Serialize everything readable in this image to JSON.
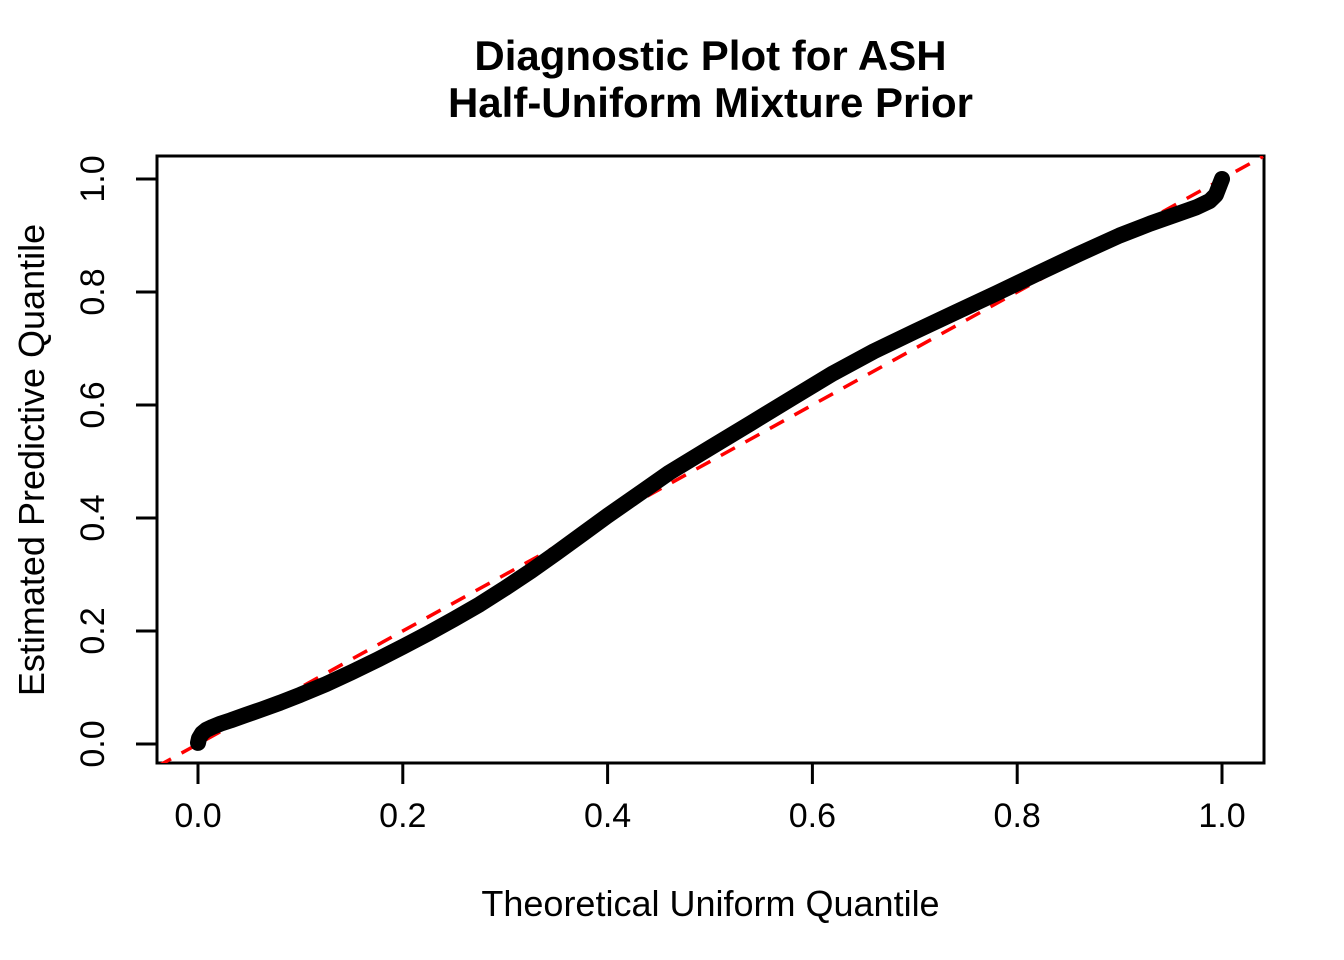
{
  "figure": {
    "background_color": "#FFFFFF",
    "axis_color": "#000000",
    "text_color": "#000000"
  },
  "chart_data": {
    "type": "line",
    "subtype": "qq-plot",
    "title_line1": "Diagnostic Plot for ASH",
    "title_line2": "Half-Uniform Mixture Prior",
    "xlabel": "Theoretical Uniform Quantile",
    "ylabel": "Estimated Predictive Quantile",
    "xlim": [
      -0.04,
      1.04
    ],
    "ylim": [
      -0.04,
      1.04
    ],
    "grid": false,
    "legend": "none",
    "xticks": [
      0.0,
      0.2,
      0.4,
      0.6,
      0.8,
      1.0
    ],
    "yticks": [
      0.0,
      0.2,
      0.4,
      0.6,
      0.8,
      1.0
    ],
    "xtick_labels": [
      "0.0",
      "0.2",
      "0.4",
      "0.6",
      "0.8",
      "1.0"
    ],
    "ytick_labels": [
      "0.0",
      "0.2",
      "0.4",
      "0.6",
      "0.8",
      "1.0"
    ],
    "series": [
      {
        "name": "estimated-predictive-quantiles",
        "type": "thick-point-curve",
        "color": "#000000",
        "style": "solid",
        "points": [
          [
            0.0,
            0.002
          ],
          [
            0.001,
            0.01
          ],
          [
            0.004,
            0.019
          ],
          [
            0.008,
            0.025
          ],
          [
            0.014,
            0.03
          ],
          [
            0.022,
            0.036
          ],
          [
            0.032,
            0.042
          ],
          [
            0.046,
            0.051
          ],
          [
            0.062,
            0.061
          ],
          [
            0.08,
            0.073
          ],
          [
            0.1,
            0.087
          ],
          [
            0.125,
            0.106
          ],
          [
            0.15,
            0.127
          ],
          [
            0.175,
            0.149
          ],
          [
            0.2,
            0.172
          ],
          [
            0.225,
            0.196
          ],
          [
            0.25,
            0.221
          ],
          [
            0.275,
            0.247
          ],
          [
            0.3,
            0.276
          ],
          [
            0.325,
            0.306
          ],
          [
            0.35,
            0.338
          ],
          [
            0.375,
            0.371
          ],
          [
            0.4,
            0.404
          ],
          [
            0.43,
            0.442
          ],
          [
            0.46,
            0.48
          ],
          [
            0.5,
            0.524
          ],
          [
            0.54,
            0.568
          ],
          [
            0.58,
            0.612
          ],
          [
            0.62,
            0.656
          ],
          [
            0.66,
            0.695
          ],
          [
            0.7,
            0.73
          ],
          [
            0.74,
            0.764
          ],
          [
            0.78,
            0.798
          ],
          [
            0.82,
            0.833
          ],
          [
            0.86,
            0.867
          ],
          [
            0.9,
            0.9
          ],
          [
            0.93,
            0.921
          ],
          [
            0.955,
            0.937
          ],
          [
            0.975,
            0.95
          ],
          [
            0.988,
            0.961
          ],
          [
            0.994,
            0.972
          ],
          [
            1.0,
            1.0
          ]
        ]
      },
      {
        "name": "identity-reference-line",
        "type": "line",
        "color": "#FF0000",
        "style": "dashed",
        "points": [
          [
            -0.04,
            -0.04
          ],
          [
            1.04,
            1.04
          ]
        ]
      }
    ]
  }
}
